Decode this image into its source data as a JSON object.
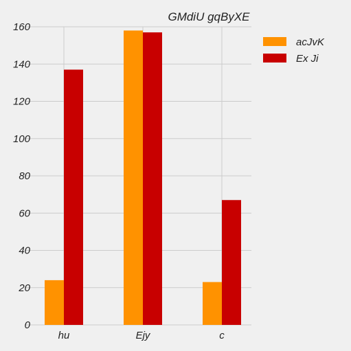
{
  "chart_data": {
    "type": "bar",
    "title": "GMdiU gqByXE",
    "xlabel": "",
    "ylabel": "",
    "categories": [
      "hu",
      "Ejy",
      "c"
    ],
    "series": [
      {
        "name": "acJvK",
        "color": "#ff9200",
        "values": [
          24,
          158,
          23
        ]
      },
      {
        "name": "Ex Ji",
        "color": "#c80000",
        "values": [
          137,
          157,
          67
        ]
      }
    ],
    "ylim": [
      0,
      160
    ],
    "yticks": [
      0,
      20,
      40,
      60,
      80,
      100,
      120,
      140,
      160
    ],
    "grid": true,
    "legend": "top-right"
  }
}
